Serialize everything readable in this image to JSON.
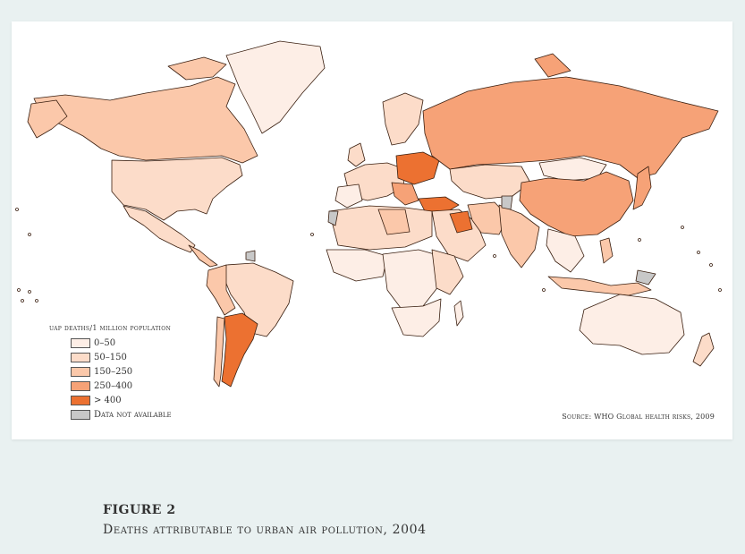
{
  "legend": {
    "title": "UAP deaths/1 million population",
    "items": [
      {
        "label": "0–50",
        "color": "#fdeee6"
      },
      {
        "label": "50–150",
        "color": "#fcdcc9"
      },
      {
        "label": "150–250",
        "color": "#fbc8aa"
      },
      {
        "label": "250–400",
        "color": "#f6a277"
      },
      {
        "label": "> 400",
        "color": "#ec7131"
      },
      {
        "label": "Data not available",
        "color": "#c8c8c8"
      }
    ]
  },
  "source": "Source: WHO Global health risks, 2009",
  "figure": {
    "label": "FIGURE 2",
    "caption": "Deaths attributable to urban air pollution, 2004"
  },
  "colors": {
    "ocean": "#ffffff",
    "border": "#3a1f10",
    "background": "#e9f1f1"
  }
}
